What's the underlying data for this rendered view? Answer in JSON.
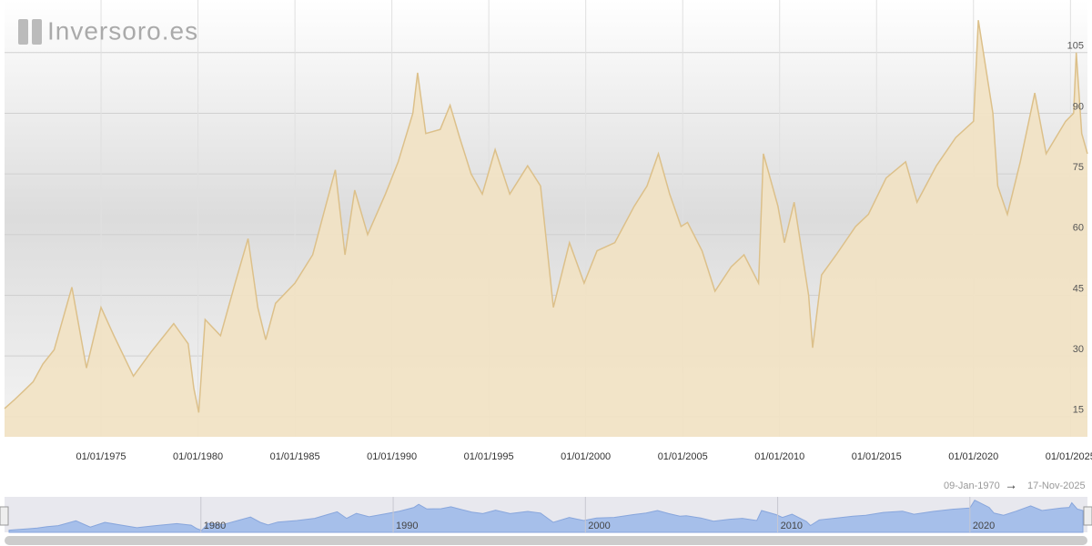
{
  "chart_data": {
    "type": "line",
    "logo": "Inversoro.es",
    "x": [
      "1970-01-09",
      "1970-07-01",
      "1971-01-01",
      "1971-07-01",
      "1972-01-01",
      "1972-08-01",
      "1973-07-01",
      "1974-04-01",
      "1975-01-01",
      "1975-09-01",
      "1976-09-01",
      "1977-08-01",
      "1978-10-01",
      "1979-07-01",
      "1979-10-15",
      "1980-01-15",
      "1980-05-15",
      "1981-03-01",
      "1981-12-01",
      "1982-08-01",
      "1983-02-01",
      "1983-07-01",
      "1984-01-01",
      "1985-01-01",
      "1985-12-01",
      "1986-08-01",
      "1987-02-01",
      "1987-08-01",
      "1988-02-01",
      "1988-10-01",
      "1989-09-01",
      "1990-05-01",
      "1991-02-01",
      "1991-05-01",
      "1991-10-01",
      "1992-07-01",
      "1993-01-01",
      "1993-07-01",
      "1994-02-01",
      "1994-09-01",
      "1995-05-01",
      "1996-02-01",
      "1997-01-01",
      "1997-09-01",
      "1998-05-01",
      "1999-03-01",
      "1999-12-01",
      "2000-08-01",
      "2001-07-01",
      "2002-07-01",
      "2003-03-01",
      "2003-10-01",
      "2004-05-01",
      "2004-12-01",
      "2005-04-01",
      "2006-01-01",
      "2006-09-01",
      "2007-07-01",
      "2008-03-01",
      "2008-12-01",
      "2009-03-01",
      "2009-12-01",
      "2010-04-01",
      "2010-10-01",
      "2011-07-01",
      "2011-09-15",
      "2012-03-01",
      "2012-12-01",
      "2013-12-01",
      "2014-08-01",
      "2015-07-01",
      "2016-07-01",
      "2017-02-01",
      "2018-02-01",
      "2019-02-01",
      "2020-01-01",
      "2020-04-01",
      "2021-01-01",
      "2021-04-01",
      "2021-10-01",
      "2022-06-01",
      "2023-03-01",
      "2023-10-01",
      "2024-10-01",
      "2025-03-01",
      "2025-04-20",
      "2025-08-01",
      "2025-11-17"
    ],
    "series": [
      {
        "color": "#dcc08a",
        "values": [
          17,
          19,
          21.3,
          23.6,
          28,
          31.5,
          47,
          27,
          42,
          35,
          25,
          31,
          38,
          33,
          22,
          16,
          39,
          35,
          48,
          59,
          42,
          34,
          43,
          48,
          55,
          67,
          76,
          55,
          71,
          60,
          70,
          78,
          90,
          100,
          85,
          86,
          92,
          84,
          75,
          70,
          81,
          70,
          77,
          72,
          42,
          58,
          48,
          56,
          58,
          67,
          72,
          80,
          70,
          62,
          63,
          56,
          46,
          52,
          55,
          48,
          80,
          67,
          58,
          68,
          45,
          32,
          50,
          55,
          62,
          65,
          74,
          78,
          68,
          77,
          84,
          88,
          113,
          90,
          72,
          65,
          78,
          95,
          80,
          88,
          90,
          105,
          85,
          80
        ]
      }
    ],
    "xlim": [
      "1970-01-09",
      "2025-11-17"
    ],
    "xticks": [
      {
        "value": "1975-01-01",
        "label": "01/01/1975"
      },
      {
        "value": "1980-01-01",
        "label": "01/01/1980"
      },
      {
        "value": "1985-01-01",
        "label": "01/01/1985"
      },
      {
        "value": "1990-01-01",
        "label": "01/01/1990"
      },
      {
        "value": "1995-01-01",
        "label": "01/01/1995"
      },
      {
        "value": "2000-01-01",
        "label": "01/01/2000"
      },
      {
        "value": "2005-01-01",
        "label": "01/01/2005"
      },
      {
        "value": "2010-01-01",
        "label": "01/01/2010"
      },
      {
        "value": "2015-01-01",
        "label": "01/01/2015"
      },
      {
        "value": "2020-01-01",
        "label": "01/01/2020"
      },
      {
        "value": "2025-01-01",
        "label": "01/01/2025"
      }
    ],
    "ylim": [
      10,
      118
    ],
    "yticks": [
      15,
      30,
      45,
      60,
      75,
      90,
      105
    ],
    "grid": true,
    "range": {
      "from": "09-Jan-1970",
      "arrow": "→",
      "to": "17-Nov-2025"
    },
    "navigator": {
      "xticks": [
        1980,
        1990,
        2000,
        2010,
        2020
      ],
      "color": "#a6bfea"
    }
  }
}
